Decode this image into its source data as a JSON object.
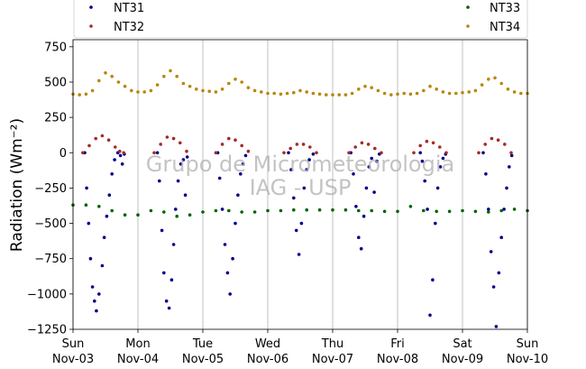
{
  "chart_data": {
    "type": "scatter",
    "ylabel": "Radiation (Wm⁻²)",
    "xlabel": "",
    "ylim": [
      -1250,
      800
    ],
    "xlim": [
      0,
      7
    ],
    "y_ticks": [
      -1250,
      -1000,
      -750,
      -500,
      -250,
      0,
      250,
      500,
      750
    ],
    "y_tick_labels": [
      "−1250",
      "−1000",
      "−750",
      "−500",
      "−250",
      "0",
      "250",
      "500",
      "750"
    ],
    "x_ticks": [
      0,
      1,
      2,
      3,
      4,
      5,
      6,
      7
    ],
    "x_tick_labels": [
      [
        "Sun",
        "Nov-03"
      ],
      [
        "Mon",
        "Nov-04"
      ],
      [
        "Tue",
        "Nov-05"
      ],
      [
        "Wed",
        "Nov-06"
      ],
      [
        "Thu",
        "Nov-07"
      ],
      [
        "Fri",
        "Nov-08"
      ],
      [
        "Sat",
        "Nov-09"
      ],
      [
        "Sun",
        "Nov-10"
      ]
    ],
    "grid": "vertical",
    "legend_position": "top",
    "watermark": [
      "Grupo de Micrometeorologia",
      "IAG - USP"
    ],
    "series": [
      {
        "name": "NT31",
        "color": "#00008b",
        "x": [
          0.18,
          0.21,
          0.24,
          0.27,
          0.3,
          0.33,
          0.36,
          0.4,
          0.45,
          0.48,
          0.52,
          0.56,
          0.6,
          0.64,
          0.69,
          0.73,
          0.76,
          0.79,
          1.3,
          1.33,
          1.37,
          1.4,
          1.44,
          1.48,
          1.52,
          1.55,
          1.58,
          1.62,
          1.66,
          1.7,
          1.73,
          1.76,
          2.23,
          2.26,
          2.3,
          2.34,
          2.38,
          2.42,
          2.46,
          2.5,
          2.54,
          2.58,
          2.62,
          2.66,
          3.32,
          3.36,
          3.4,
          3.44,
          3.48,
          3.52,
          3.56,
          3.6,
          3.64,
          3.7,
          4.28,
          4.32,
          4.36,
          4.4,
          4.44,
          4.48,
          4.52,
          4.56,
          4.6,
          4.64,
          4.68,
          4.72,
          5.35,
          5.38,
          5.42,
          5.46,
          5.5,
          5.54,
          5.58,
          5.62,
          5.66,
          5.7,
          5.74,
          6.32,
          6.36,
          6.4,
          6.44,
          6.48,
          6.52,
          6.56,
          6.6,
          6.64,
          6.68,
          6.72,
          6.76
        ],
        "y": [
          0,
          -250,
          -500,
          -750,
          -950,
          -1050,
          -1120,
          -1000,
          -800,
          -600,
          -450,
          -300,
          -150,
          -50,
          0,
          -20,
          -80,
          -10,
          0,
          -200,
          -550,
          -850,
          -1050,
          -1100,
          -900,
          -650,
          -400,
          -200,
          -80,
          -50,
          -300,
          -30,
          0,
          -180,
          -400,
          -650,
          -850,
          -1000,
          -750,
          -500,
          -300,
          -150,
          -80,
          -20,
          0,
          -120,
          -320,
          -550,
          -720,
          -500,
          -250,
          -120,
          -50,
          -10,
          0,
          -150,
          -380,
          -600,
          -680,
          -450,
          -250,
          -100,
          -40,
          -280,
          -60,
          -10,
          0,
          -60,
          -200,
          -400,
          -1150,
          -900,
          -500,
          -250,
          -100,
          -40,
          -10,
          0,
          -150,
          -400,
          -700,
          -950,
          -1230,
          -850,
          -600,
          -400,
          -250,
          -100,
          -20
        ]
      },
      {
        "name": "NT32",
        "color": "#a52a2a",
        "x": [
          0.15,
          0.25,
          0.35,
          0.45,
          0.55,
          0.65,
          0.72,
          0.78,
          1.25,
          1.35,
          1.45,
          1.55,
          1.65,
          1.75,
          2.2,
          2.3,
          2.4,
          2.5,
          2.6,
          2.7,
          3.25,
          3.35,
          3.45,
          3.55,
          3.65,
          3.75,
          4.25,
          4.35,
          4.45,
          4.55,
          4.65,
          4.75,
          5.25,
          5.35,
          5.45,
          5.55,
          5.65,
          5.75,
          6.25,
          6.35,
          6.45,
          6.55,
          6.65,
          6.75
        ],
        "y": [
          0,
          50,
          100,
          120,
          90,
          40,
          10,
          0,
          0,
          60,
          110,
          100,
          70,
          10,
          0,
          60,
          100,
          90,
          50,
          10,
          0,
          30,
          60,
          60,
          40,
          0,
          0,
          40,
          70,
          60,
          30,
          0,
          0,
          50,
          80,
          70,
          40,
          0,
          0,
          60,
          100,
          90,
          60,
          0
        ]
      },
      {
        "name": "NT33",
        "color": "#006400",
        "x": [
          0,
          0.2,
          0.4,
          0.6,
          0.8,
          1.0,
          1.2,
          1.4,
          1.6,
          1.8,
          2.0,
          2.2,
          2.4,
          2.6,
          2.8,
          3.0,
          3.2,
          3.4,
          3.6,
          3.8,
          4.0,
          4.2,
          4.4,
          4.6,
          4.8,
          5.0,
          5.2,
          5.4,
          5.6,
          5.8,
          6.0,
          6.2,
          6.4,
          6.6,
          6.8,
          7.0
        ],
        "y": [
          -370,
          -370,
          -380,
          -410,
          -440,
          -440,
          -410,
          -420,
          -450,
          -440,
          -420,
          -410,
          -410,
          -420,
          -420,
          -410,
          -410,
          -405,
          -405,
          -405,
          -405,
          -405,
          -410,
          -410,
          -415,
          -415,
          -380,
          -410,
          -415,
          -415,
          -410,
          -415,
          -420,
          -410,
          -400,
          -410
        ]
      },
      {
        "name": "NT34",
        "color": "#b8860b",
        "x": [
          0,
          0.1,
          0.2,
          0.3,
          0.4,
          0.5,
          0.6,
          0.7,
          0.8,
          0.9,
          1.0,
          1.1,
          1.2,
          1.3,
          1.4,
          1.5,
          1.6,
          1.7,
          1.8,
          1.9,
          2.0,
          2.1,
          2.2,
          2.3,
          2.4,
          2.5,
          2.6,
          2.7,
          2.8,
          2.9,
          3.0,
          3.1,
          3.2,
          3.3,
          3.4,
          3.5,
          3.6,
          3.7,
          3.8,
          3.9,
          4.0,
          4.1,
          4.2,
          4.3,
          4.4,
          4.5,
          4.6,
          4.7,
          4.8,
          4.9,
          5.0,
          5.1,
          5.2,
          5.3,
          5.4,
          5.5,
          5.6,
          5.7,
          5.8,
          5.9,
          6.0,
          6.1,
          6.2,
          6.3,
          6.4,
          6.5,
          6.6,
          6.7,
          6.8,
          6.9,
          7.0
        ],
        "y": [
          415,
          410,
          415,
          440,
          510,
          565,
          540,
          500,
          470,
          440,
          430,
          430,
          440,
          480,
          540,
          580,
          540,
          490,
          470,
          450,
          440,
          435,
          430,
          450,
          490,
          520,
          500,
          460,
          440,
          430,
          420,
          420,
          415,
          420,
          425,
          440,
          430,
          420,
          415,
          410,
          410,
          410,
          410,
          420,
          450,
          470,
          460,
          440,
          420,
          410,
          415,
          420,
          415,
          420,
          440,
          470,
          450,
          430,
          420,
          420,
          425,
          430,
          440,
          480,
          520,
          530,
          490,
          450,
          430,
          420,
          420
        ]
      }
    ]
  }
}
